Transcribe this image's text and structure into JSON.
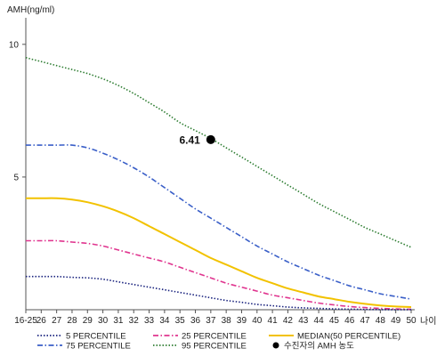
{
  "chart_data": {
    "type": "line",
    "title": "",
    "ylabel": "AMH(ng/ml)",
    "xlabel": "나이",
    "ylim": [
      0,
      11
    ],
    "y_ticks": [
      5,
      10
    ],
    "grid": false,
    "legend_position": "bottom",
    "categories": [
      "16-25",
      "26",
      "27",
      "28",
      "29",
      "30",
      "31",
      "32",
      "33",
      "34",
      "35",
      "36",
      "37",
      "38",
      "39",
      "40",
      "41",
      "42",
      "43",
      "44",
      "45",
      "46",
      "47",
      "48",
      "49",
      "50"
    ],
    "series": [
      {
        "name": "95 PERCENTILE",
        "color": "#2e7d32",
        "style": "dotted",
        "values": [
          9.5,
          9.35,
          9.2,
          9.05,
          8.9,
          8.7,
          8.45,
          8.15,
          7.8,
          7.45,
          7.05,
          6.75,
          6.45,
          6.1,
          5.75,
          5.4,
          5.05,
          4.7,
          4.35,
          4.0,
          3.7,
          3.4,
          3.1,
          2.85,
          2.6,
          2.35
        ]
      },
      {
        "name": "75 PERCENTILE",
        "color": "#3a5fc8",
        "style": "dashdot",
        "values": [
          6.2,
          6.2,
          6.2,
          6.2,
          6.1,
          5.9,
          5.65,
          5.35,
          5.0,
          4.6,
          4.2,
          3.8,
          3.45,
          3.1,
          2.75,
          2.4,
          2.1,
          1.8,
          1.55,
          1.3,
          1.1,
          0.9,
          0.75,
          0.6,
          0.5,
          0.4
        ]
      },
      {
        "name": "MEDIAN(50 PERCENTILE)",
        "color": "#f2c200",
        "style": "solid",
        "values": [
          4.2,
          4.2,
          4.2,
          4.15,
          4.05,
          3.9,
          3.7,
          3.45,
          3.15,
          2.85,
          2.55,
          2.25,
          1.95,
          1.7,
          1.45,
          1.2,
          1.0,
          0.8,
          0.65,
          0.5,
          0.4,
          0.3,
          0.22,
          0.16,
          0.12,
          0.1
        ]
      },
      {
        "name": "25 PERCENTILE",
        "color": "#e0358f",
        "style": "dashdot",
        "values": [
          2.6,
          2.6,
          2.6,
          2.55,
          2.5,
          2.4,
          2.25,
          2.1,
          1.95,
          1.8,
          1.6,
          1.4,
          1.2,
          1.0,
          0.85,
          0.7,
          0.55,
          0.45,
          0.35,
          0.25,
          0.18,
          0.12,
          0.08,
          0.05,
          0.03,
          0.02
        ]
      },
      {
        "name": "5 PERCENTILE",
        "color": "#1a237e",
        "style": "dotted",
        "values": [
          1.25,
          1.25,
          1.25,
          1.22,
          1.2,
          1.15,
          1.05,
          0.95,
          0.85,
          0.75,
          0.65,
          0.55,
          0.45,
          0.35,
          0.28,
          0.2,
          0.15,
          0.1,
          0.07,
          0.05,
          0.03,
          0.02,
          0.01,
          0.005,
          0.0,
          0.0
        ]
      }
    ],
    "annotation": {
      "label": "6.41",
      "x": "37",
      "y": 6.41,
      "legend_label": "수진자의 AMH 농도"
    }
  }
}
